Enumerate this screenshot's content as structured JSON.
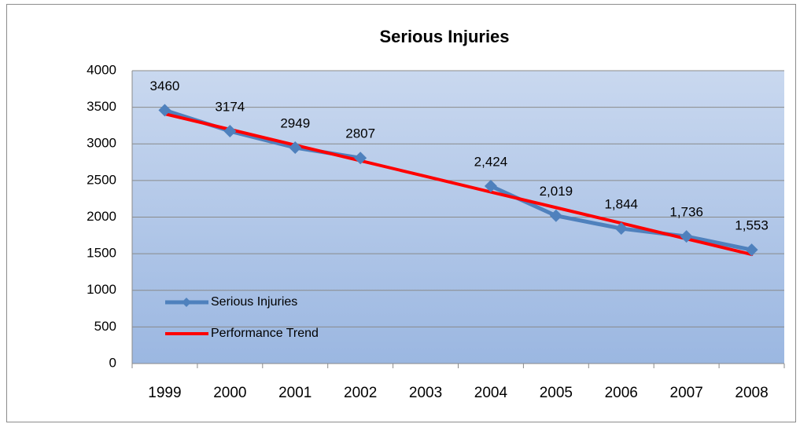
{
  "chart_data": {
    "type": "line",
    "title": "Serious Injuries",
    "categories": [
      "1999",
      "2000",
      "2001",
      "2002",
      "2003",
      "2004",
      "2005",
      "2006",
      "2007",
      "2008"
    ],
    "series": [
      {
        "name": "Serious Injuries",
        "color": "#4f81bd",
        "marker": "diamond",
        "values": [
          3460,
          3174,
          2949,
          2807,
          null,
          2424,
          2019,
          1844,
          1736,
          1553
        ],
        "value_labels": [
          "3460",
          "3174",
          "2949",
          "2807",
          null,
          "2,424",
          "2,019",
          "1,844",
          "1,736",
          "1,553"
        ]
      },
      {
        "name": "Performance Trend",
        "color": "#ff0000",
        "values": [
          3410,
          3197,
          2983,
          2770,
          2557,
          2343,
          2130,
          1917,
          1703,
          1490
        ]
      }
    ],
    "ylim": [
      0,
      4000
    ],
    "yticks": [
      0,
      500,
      1000,
      1500,
      2000,
      2500,
      3000,
      3500,
      4000
    ],
    "grid": true,
    "legend": "lower left"
  }
}
